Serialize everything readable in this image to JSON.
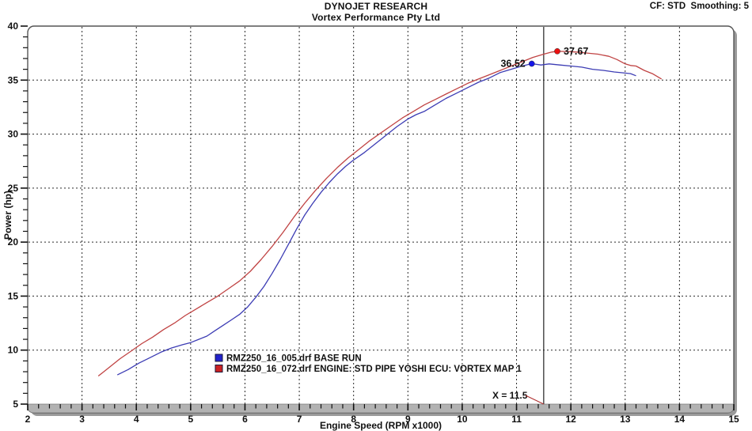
{
  "header": {
    "title": "DYNOJET RESEARCH",
    "subtitle": "Vortex Performance Pty Ltd",
    "correction_info": "CF: STD  Smoothing: 5"
  },
  "chart_data": {
    "type": "line",
    "title": "DYNOJET RESEARCH",
    "subtitle": "Vortex Performance Pty Ltd",
    "xlabel": "Engine Speed (RPM x1000)",
    "ylabel": "Power (hp)",
    "xlim": [
      2,
      15
    ],
    "ylim": [
      5,
      40
    ],
    "x_major_ticks": [
      2,
      3,
      4,
      5,
      6,
      7,
      8,
      9,
      10,
      11,
      12,
      13,
      14,
      15
    ],
    "x_minor_step": 0.2,
    "y_major_ticks": [
      5,
      10,
      15,
      20,
      25,
      30,
      35,
      40
    ],
    "y_minor_step": 1,
    "grid": "dashed both axes at major ticks",
    "legend_position": "inside-bottom-left-of-center",
    "cursor": {
      "x": 11.5,
      "label": "X = 11.5"
    },
    "series": [
      {
        "name": "RMZ250_16_005.drf BASE RUN",
        "color": "#3c3cb4",
        "marker_color": "#1515e8",
        "peak": {
          "rpm": 11.28,
          "hp": 36.52,
          "label": "36.52",
          "label_side": "left"
        },
        "points": [
          [
            3.65,
            7.7
          ],
          [
            3.85,
            8.2
          ],
          [
            4.05,
            8.8
          ],
          [
            4.25,
            9.3
          ],
          [
            4.45,
            9.8
          ],
          [
            4.65,
            10.2
          ],
          [
            4.85,
            10.5
          ],
          [
            5.0,
            10.7
          ],
          [
            5.15,
            11.0
          ],
          [
            5.3,
            11.3
          ],
          [
            5.45,
            11.8
          ],
          [
            5.6,
            12.3
          ],
          [
            5.75,
            12.8
          ],
          [
            5.9,
            13.3
          ],
          [
            6.05,
            14.0
          ],
          [
            6.2,
            14.9
          ],
          [
            6.35,
            15.9
          ],
          [
            6.5,
            17.1
          ],
          [
            6.65,
            18.4
          ],
          [
            6.8,
            19.8
          ],
          [
            6.95,
            21.2
          ],
          [
            7.1,
            22.5
          ],
          [
            7.25,
            23.6
          ],
          [
            7.4,
            24.6
          ],
          [
            7.55,
            25.5
          ],
          [
            7.7,
            26.3
          ],
          [
            7.85,
            27.0
          ],
          [
            8.0,
            27.6
          ],
          [
            8.2,
            28.3
          ],
          [
            8.4,
            29.1
          ],
          [
            8.6,
            29.9
          ],
          [
            8.8,
            30.7
          ],
          [
            9.0,
            31.4
          ],
          [
            9.15,
            31.8
          ],
          [
            9.3,
            32.1
          ],
          [
            9.5,
            32.7
          ],
          [
            9.7,
            33.3
          ],
          [
            9.9,
            33.8
          ],
          [
            10.1,
            34.3
          ],
          [
            10.3,
            34.8
          ],
          [
            10.5,
            35.2
          ],
          [
            10.7,
            35.7
          ],
          [
            10.9,
            36.0
          ],
          [
            11.1,
            36.3
          ],
          [
            11.28,
            36.52
          ],
          [
            11.45,
            36.4
          ],
          [
            11.6,
            36.5
          ],
          [
            11.8,
            36.4
          ],
          [
            12.0,
            36.3
          ],
          [
            12.2,
            36.2
          ],
          [
            12.4,
            36.0
          ],
          [
            12.6,
            35.9
          ],
          [
            12.8,
            35.75
          ],
          [
            13.0,
            35.65
          ],
          [
            13.1,
            35.6
          ],
          [
            13.2,
            35.4
          ]
        ]
      },
      {
        "name": "RMZ250_16_072.drf ENGINE: STD PIPE  YOSHI ECU: VORTEX MAP 1",
        "color": "#c04343",
        "marker_color": "#ea1010",
        "peak": {
          "rpm": 11.75,
          "hp": 37.67,
          "label": "37.67",
          "label_side": "right"
        },
        "points": [
          [
            3.3,
            7.6
          ],
          [
            3.5,
            8.4
          ],
          [
            3.7,
            9.2
          ],
          [
            3.9,
            9.9
          ],
          [
            4.1,
            10.6
          ],
          [
            4.3,
            11.2
          ],
          [
            4.5,
            11.9
          ],
          [
            4.7,
            12.5
          ],
          [
            4.9,
            13.2
          ],
          [
            5.1,
            13.8
          ],
          [
            5.3,
            14.4
          ],
          [
            5.5,
            15.0
          ],
          [
            5.7,
            15.7
          ],
          [
            5.9,
            16.4
          ],
          [
            6.1,
            17.3
          ],
          [
            6.3,
            18.4
          ],
          [
            6.5,
            19.6
          ],
          [
            6.7,
            20.9
          ],
          [
            6.9,
            22.3
          ],
          [
            7.1,
            23.6
          ],
          [
            7.3,
            24.8
          ],
          [
            7.5,
            25.9
          ],
          [
            7.7,
            26.9
          ],
          [
            7.9,
            27.8
          ],
          [
            8.1,
            28.6
          ],
          [
            8.3,
            29.4
          ],
          [
            8.5,
            30.1
          ],
          [
            8.7,
            30.8
          ],
          [
            8.9,
            31.5
          ],
          [
            9.1,
            32.1
          ],
          [
            9.3,
            32.7
          ],
          [
            9.5,
            33.2
          ],
          [
            9.7,
            33.7
          ],
          [
            9.9,
            34.2
          ],
          [
            10.1,
            34.7
          ],
          [
            10.3,
            35.1
          ],
          [
            10.5,
            35.5
          ],
          [
            10.7,
            35.9
          ],
          [
            10.9,
            36.3
          ],
          [
            11.1,
            36.7
          ],
          [
            11.3,
            37.1
          ],
          [
            11.5,
            37.4
          ],
          [
            11.65,
            37.6
          ],
          [
            11.75,
            37.67
          ],
          [
            11.9,
            37.65
          ],
          [
            12.1,
            37.6
          ],
          [
            12.3,
            37.5
          ],
          [
            12.5,
            37.4
          ],
          [
            12.7,
            37.2
          ],
          [
            12.85,
            36.9
          ],
          [
            13.0,
            36.5
          ],
          [
            13.1,
            36.35
          ],
          [
            13.2,
            36.3
          ],
          [
            13.35,
            35.9
          ],
          [
            13.5,
            35.6
          ],
          [
            13.67,
            35.1
          ]
        ]
      }
    ]
  },
  "colors": {
    "grid": "#2a2a2a",
    "frame_border": "#555555",
    "frame_shadow": "#9a9a9a",
    "axis_bar": "#b2b2b2",
    "axis_bar_edge": "#7a7a7a",
    "cursor_line": "#222222",
    "cursor_pointer": "#b03030",
    "text": "#111111",
    "legend_swatch_border": "#1a1a3a"
  }
}
